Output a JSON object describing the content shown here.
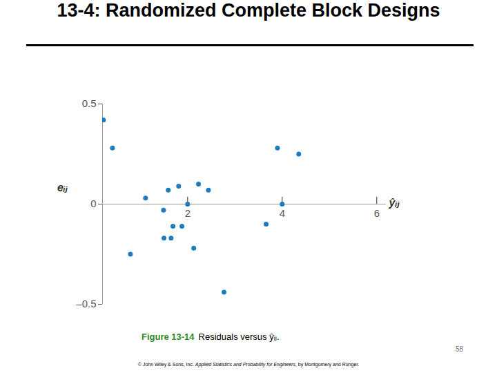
{
  "title": "13-4: Randomized Complete Block Designs",
  "chart_data": {
    "type": "scatter",
    "x_label": "ŷᵢⱼ",
    "y_label": "eᵢⱼ",
    "x": [
      0.22,
      0.41,
      0.79,
      1.11,
      1.49,
      1.5,
      1.59,
      1.65,
      1.69,
      1.81,
      1.88,
      2.0,
      2.13,
      2.23,
      2.44,
      2.77,
      3.66,
      3.9,
      4.0,
      4.35
    ],
    "values": [
      0.42,
      0.28,
      -0.25,
      0.03,
      -0.03,
      -0.17,
      0.07,
      -0.17,
      -0.11,
      0.09,
      -0.11,
      0.0,
      -0.22,
      0.1,
      0.07,
      -0.44,
      -0.1,
      0.28,
      0.0,
      0.25
    ],
    "color": "#1f7bbf",
    "xlim": [
      0.2,
      6.2
    ],
    "xticks": [
      2,
      4,
      6
    ],
    "ylim": [
      -0.5,
      0.5
    ],
    "yticks": [
      {
        "value": -0.5,
        "label": "–0.5"
      },
      0,
      0.5
    ],
    "grid": false
  },
  "caption": {
    "label": "Figure 13-14",
    "text": "Residuals versus ŷᵢⱼ."
  },
  "page_number": "58",
  "footer": {
    "publisher": "© John Wiley & Sons, Inc.",
    "book": "Applied Statistics and Probability for Engineers",
    "authors": ", by Montgomery and Runger."
  }
}
